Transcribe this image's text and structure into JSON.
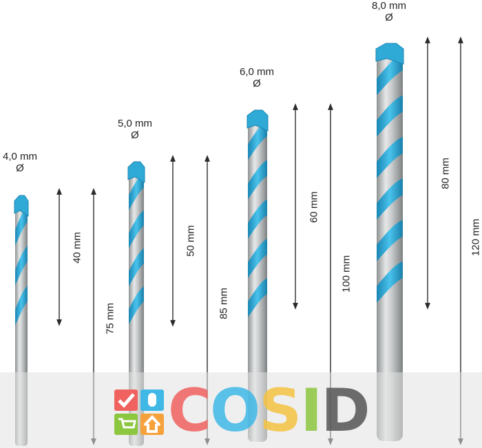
{
  "bits": [
    {
      "diameter": "4,0 mm",
      "diameter_symbol": "Ø",
      "working_length": "40 mm",
      "total_length": "75 mm"
    },
    {
      "diameter": "5,0 mm",
      "diameter_symbol": "Ø",
      "working_length": "50 mm",
      "total_length": "85 mm"
    },
    {
      "diameter": "6,0 mm",
      "diameter_symbol": "Ø",
      "working_length": "60 mm",
      "total_length": "100 mm"
    },
    {
      "diameter": "8,0 mm",
      "diameter_symbol": "Ø",
      "working_length": "80 mm",
      "total_length": "120 mm"
    }
  ],
  "watermark": {
    "text": "COSID",
    "letter_colors": [
      "#f0625f",
      "#3fb8e6",
      "#f6c342",
      "#8dc63f",
      "#555555"
    ],
    "icon_colors": [
      "#f0625f",
      "#3fb8e6",
      "#8dc63f",
      "#f6a23c"
    ]
  },
  "colors": {
    "flute": "#2fa9d6",
    "shank": "#b9bcbd",
    "arrow": "#2a2a2a"
  }
}
